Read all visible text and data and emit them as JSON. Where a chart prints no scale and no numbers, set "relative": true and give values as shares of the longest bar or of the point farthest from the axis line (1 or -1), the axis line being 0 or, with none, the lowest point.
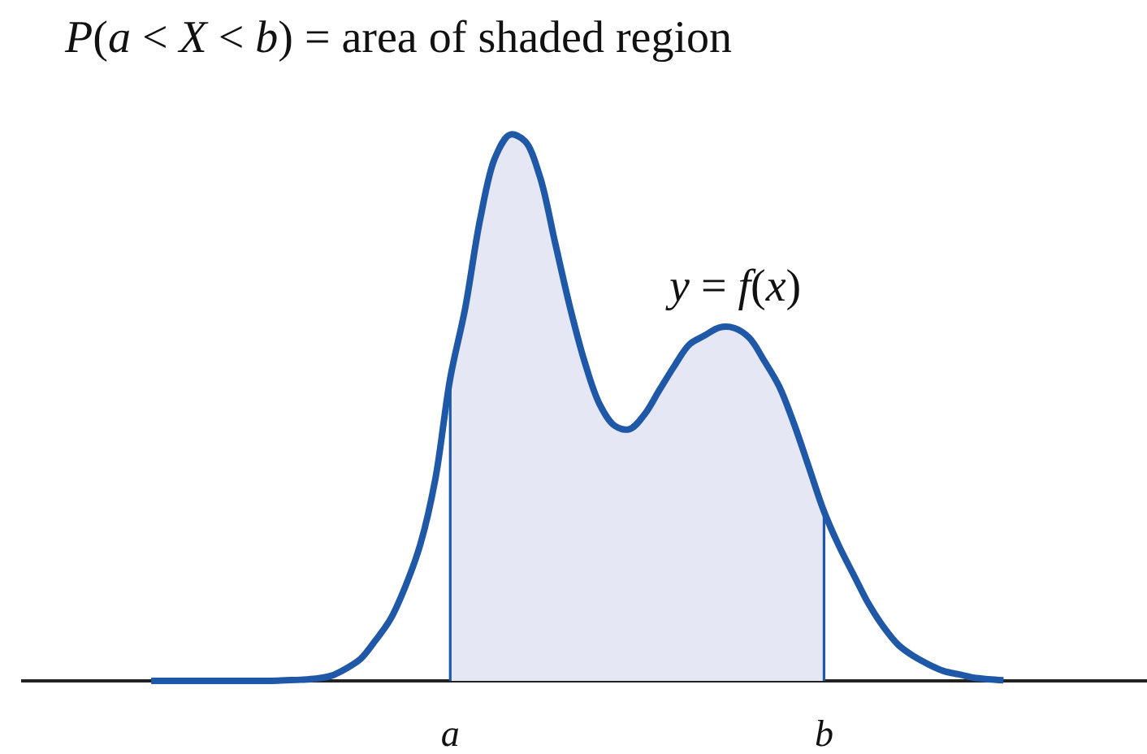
{
  "chart_data": {
    "type": "line",
    "relative": true,
    "title": "P(a < X < b) = area of shaded region",
    "categories": [
      null,
      null,
      null,
      null,
      null,
      null,
      null,
      null,
      null,
      null,
      null,
      null,
      null,
      null,
      null,
      null,
      null,
      null,
      null,
      null,
      "a",
      null,
      null,
      null,
      null,
      null,
      null,
      null,
      null,
      null,
      null,
      null,
      null,
      null,
      null,
      null,
      null,
      null,
      null,
      null,
      null,
      null,
      null,
      null,
      null,
      "b",
      null,
      null,
      null,
      null,
      null,
      null,
      null,
      null,
      null,
      null,
      null,
      null
    ],
    "series": [
      {
        "name": "y = f(x)",
        "color": "#1f58a6",
        "values": [
          0,
          0,
          0,
          0,
          0,
          0,
          0,
          0,
          0,
          0.001,
          0.002,
          0.004,
          0.009,
          0.022,
          0.04,
          0.074,
          0.113,
          0.173,
          0.25,
          0.369,
          0.554,
          0.682,
          0.845,
          0.958,
          1.0,
          0.988,
          0.923,
          0.804,
          0.685,
          0.583,
          0.506,
          0.467,
          0.461,
          0.488,
          0.533,
          0.577,
          0.616,
          0.632,
          0.647,
          0.646,
          0.628,
          0.586,
          0.539,
          0.47,
          0.39,
          0.31,
          0.247,
          0.193,
          0.14,
          0.098,
          0.065,
          0.045,
          0.03,
          0.018,
          0.012,
          0.006,
          0.003,
          0.001
        ]
      },
      {
        "type": "area",
        "color": "#e6e7f4",
        "values": [
          null,
          null,
          null,
          null,
          null,
          null,
          null,
          null,
          null,
          null,
          null,
          null,
          null,
          null,
          null,
          null,
          null,
          null,
          null,
          null,
          0.554,
          0.682,
          0.845,
          0.958,
          1.0,
          0.988,
          0.923,
          0.804,
          0.685,
          0.583,
          0.506,
          0.467,
          0.461,
          0.488,
          0.533,
          0.577,
          0.616,
          0.632,
          0.647,
          0.646,
          0.628,
          0.586,
          0.539,
          0.47,
          0.39,
          0.31,
          null,
          null,
          null,
          null,
          null,
          null,
          null,
          null,
          null,
          null,
          null,
          null
        ]
      }
    ]
  }
}
